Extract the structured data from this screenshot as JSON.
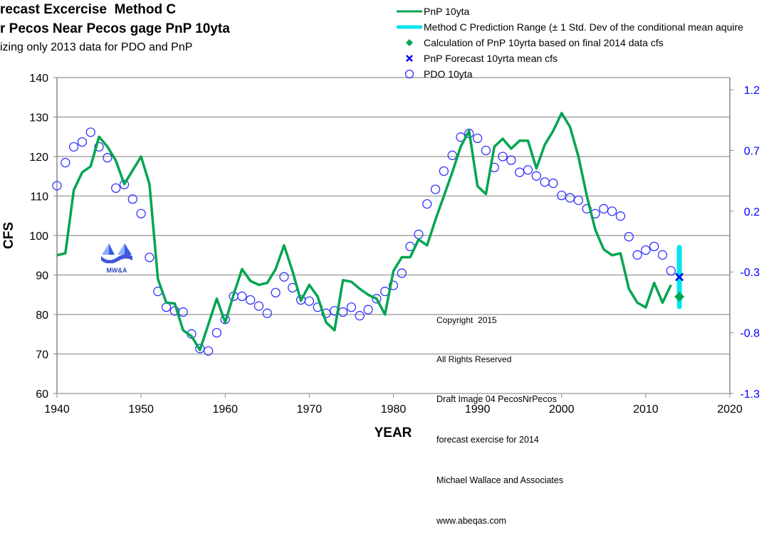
{
  "title_lines": [
    "recast Excercise  Method C",
    "r Pecos Near Pecos gage PnP 10yta",
    "izing only 2013 data for PDO and PnP"
  ],
  "legend": [
    {
      "label": "PnP 10yta",
      "symbol": "line",
      "color": "#00a550"
    },
    {
      "label": "Method C Prediction Range (± 1 Std. Dev of the conditional mean aquire",
      "symbol": "thick-line",
      "color": "#00e5ee"
    },
    {
      "label": "Calculation of PnP 10yrta based on final 2014  data cfs",
      "symbol": "diamond",
      "color": "#00a550"
    },
    {
      "label": "PnP Forecast 10yrta mean cfs",
      "symbol": "x",
      "color": "#0000ee"
    },
    {
      "label": "PDO 10yta",
      "symbol": "open-circle",
      "color": "#3333ff"
    }
  ],
  "annotation": [
    "Copyright  2015",
    "All Rights Reserved",
    "Draft Image 04 PecosNrPecos",
    "forecast exercise for 2014",
    "Michael Wallace and Associates",
    "www.abeqas.com"
  ],
  "logo_text": "MW&A",
  "chart_data": {
    "type": "line",
    "xlabel": "YEAR",
    "ylabel": "CFS",
    "xlim": [
      1940,
      2020
    ],
    "xticks": [
      1940,
      1950,
      1960,
      1970,
      1980,
      1990,
      2000,
      2010,
      2020
    ],
    "ylim": [
      60,
      140
    ],
    "yticks": [
      60,
      70,
      80,
      90,
      100,
      110,
      120,
      130,
      140
    ],
    "y2lim": [
      -1.3,
      1.3
    ],
    "y2ticks": [
      "-1.3",
      "-0.8",
      "-0.3",
      "0.2",
      "0.7",
      "1.2"
    ],
    "grid": "horizontal",
    "legend_position": "top-right",
    "x": [
      1940,
      1941,
      1942,
      1943,
      1944,
      1945,
      1946,
      1947,
      1948,
      1949,
      1950,
      1951,
      1952,
      1953,
      1954,
      1955,
      1956,
      1957,
      1958,
      1959,
      1960,
      1961,
      1962,
      1963,
      1964,
      1965,
      1966,
      1967,
      1968,
      1969,
      1970,
      1971,
      1972,
      1973,
      1974,
      1975,
      1976,
      1977,
      1978,
      1979,
      1980,
      1981,
      1982,
      1983,
      1984,
      1985,
      1986,
      1987,
      1988,
      1989,
      1990,
      1991,
      1992,
      1993,
      1994,
      1995,
      1996,
      1997,
      1998,
      1999,
      2000,
      2001,
      2002,
      2003,
      2004,
      2005,
      2006,
      2007,
      2008,
      2009,
      2010,
      2011,
      2012,
      2013
    ],
    "series": [
      {
        "name": "PnP 10yta",
        "axis": "left",
        "values": [
          95,
          95.5,
          111.5,
          116,
          117.5,
          125,
          122.5,
          119,
          113,
          116.5,
          120,
          113,
          89,
          83,
          82.8,
          76,
          74.5,
          71,
          77.5,
          84,
          78,
          85,
          91.5,
          88.5,
          87.5,
          88,
          91.5,
          97.5,
          91,
          83.5,
          87.5,
          84.5,
          78,
          76,
          88.7,
          88.3,
          86.5,
          85,
          84,
          80,
          91,
          94.5,
          94.5,
          99,
          97.5,
          104,
          110,
          116,
          122.5,
          126.5,
          112.5,
          110.5,
          122.5,
          124.5,
          122,
          124,
          124,
          117,
          123,
          126.5,
          131,
          127.5,
          120,
          110,
          101.5,
          96.5,
          95,
          95.5,
          86.5,
          83,
          81.8,
          88,
          83,
          87.5
        ]
      },
      {
        "name": "PDO 10yta",
        "axis": "right",
        "values": [
          0.41,
          0.6,
          0.73,
          0.77,
          0.85,
          0.73,
          0.64,
          0.39,
          0.42,
          0.3,
          0.18,
          -0.18,
          -0.46,
          -0.59,
          -0.62,
          -0.63,
          -0.81,
          -0.93,
          -0.95,
          -0.8,
          -0.69,
          -0.5,
          -0.5,
          -0.53,
          -0.58,
          -0.64,
          -0.47,
          -0.34,
          -0.43,
          -0.53,
          -0.54,
          -0.59,
          -0.64,
          -0.62,
          -0.63,
          -0.59,
          -0.66,
          -0.61,
          -0.52,
          -0.46,
          -0.41,
          -0.31,
          -0.09,
          0.01,
          0.26,
          0.38,
          0.53,
          0.66,
          0.81,
          0.84,
          0.8,
          0.7,
          0.56,
          0.65,
          0.62,
          0.52,
          0.54,
          0.49,
          0.44,
          0.43,
          0.33,
          0.31,
          0.29,
          0.22,
          0.18,
          0.22,
          0.2,
          0.16,
          -0.01,
          -0.16,
          -0.12,
          -0.09,
          -0.16,
          -0.29
        ]
      }
    ],
    "prediction_range": {
      "x": 2014,
      "low": 82,
      "high": 97
    },
    "forecast_mean": {
      "x": 2014,
      "y": 89.5
    },
    "final_2014_calc": {
      "x": 2014,
      "y": 84.5
    }
  }
}
